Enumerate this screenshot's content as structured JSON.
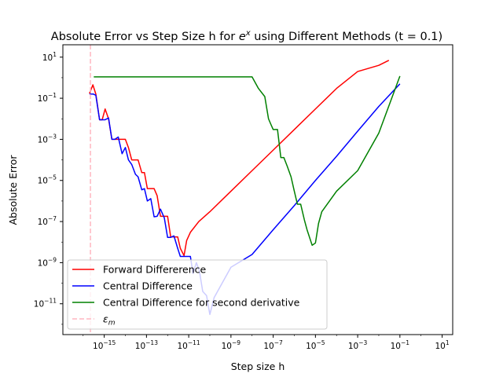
{
  "chart_data": {
    "type": "line",
    "title_prefix": "Absolute Error vs Step Size h for ",
    "title_math": "e",
    "title_sup": "x",
    "title_suffix": " using Different Methods (t = 0.1)",
    "xlabel": "Step size h",
    "ylabel": "Absolute Error",
    "xscale": "log",
    "yscale": "log",
    "xlim": [
      1.1e-17,
      31.6
    ],
    "ylim": [
      3.16e-13,
      40.0
    ],
    "xticks": [
      1e-15,
      1e-13,
      1e-11,
      1e-09,
      1e-07,
      1e-05,
      0.001,
      0.1,
      10.0
    ],
    "yticks": [
      1e-11,
      1e-09,
      1e-07,
      1e-05,
      0.001,
      0.1,
      10.0
    ],
    "xtick_labels": [
      {
        "base": "10",
        "exp": "−15"
      },
      {
        "base": "10",
        "exp": "−13"
      },
      {
        "base": "10",
        "exp": "−11"
      },
      {
        "base": "10",
        "exp": "−9"
      },
      {
        "base": "10",
        "exp": "−7"
      },
      {
        "base": "10",
        "exp": "−5"
      },
      {
        "base": "10",
        "exp": "−3"
      },
      {
        "base": "10",
        "exp": "−1"
      },
      {
        "base": "10",
        "exp": "1"
      }
    ],
    "ytick_labels": [
      {
        "base": "10",
        "exp": "−11"
      },
      {
        "base": "10",
        "exp": "−9"
      },
      {
        "base": "10",
        "exp": "−7"
      },
      {
        "base": "10",
        "exp": "−5"
      },
      {
        "base": "10",
        "exp": "−3"
      },
      {
        "base": "10",
        "exp": "−1"
      },
      {
        "base": "10",
        "exp": "1"
      }
    ],
    "legend_position": "lower-left",
    "series": [
      {
        "name": "Forward Differerence",
        "color": "#ff0000",
        "style": "solid",
        "points": [
          [
            2e-16,
            0.17
          ],
          [
            2.9e-16,
            0.45
          ],
          [
            4e-16,
            0.16
          ],
          [
            6e-16,
            0.009
          ],
          [
            8e-16,
            0.009
          ],
          [
            1.1e-15,
            0.03
          ],
          [
            1.6e-15,
            0.01
          ],
          [
            2.3e-15,
            0.001
          ],
          [
            3.2e-15,
            0.001
          ],
          [
            4.6e-15,
            0.001
          ],
          [
            7e-15,
            0.001
          ],
          [
            1e-14,
            0.001
          ],
          [
            1.4e-14,
            0.0004
          ],
          [
            2e-14,
            0.0001
          ],
          [
            3e-14,
            0.0001
          ],
          [
            4e-14,
            0.0001
          ],
          [
            6e-14,
            2.4e-05
          ],
          [
            8e-14,
            2.4e-05
          ],
          [
            1.1e-13,
            4e-06
          ],
          [
            1.6e-13,
            4e-06
          ],
          [
            2.3e-13,
            4e-06
          ],
          [
            3.2e-13,
            1.8e-06
          ],
          [
            4.6e-13,
            1.8e-07
          ],
          [
            7e-13,
            1.8e-07
          ],
          [
            1e-12,
            1.8e-07
          ],
          [
            1.4e-12,
            1.8e-08
          ],
          [
            2e-12,
            1.8e-08
          ],
          [
            3e-12,
            1.8e-08
          ],
          [
            4e-12,
            5e-09
          ],
          [
            6e-12,
            2.2e-09
          ],
          [
            8e-12,
            1.2e-08
          ],
          [
            1.2e-11,
            3e-08
          ],
          [
            3e-11,
            1e-07
          ],
          [
            1e-10,
            3e-07
          ],
          [
            1e-09,
            3e-06
          ],
          [
            1e-08,
            3e-05
          ],
          [
            1e-07,
            0.0003
          ],
          [
            1e-06,
            0.003
          ],
          [
            1e-05,
            0.03
          ],
          [
            0.0001,
            0.3
          ],
          [
            0.001,
            2.0
          ],
          [
            0.01,
            4.0
          ],
          [
            0.03,
            7.0
          ]
        ]
      },
      {
        "name": "Central Difference",
        "color": "#0000ff",
        "style": "solid",
        "points": [
          [
            2e-16,
            0.16
          ],
          [
            3e-16,
            0.16
          ],
          [
            4e-16,
            0.14
          ],
          [
            6e-16,
            0.009
          ],
          [
            8e-16,
            0.009
          ],
          [
            1.1e-15,
            0.009
          ],
          [
            1.6e-15,
            0.011
          ],
          [
            2.3e-15,
            0.001
          ],
          [
            3.2e-15,
            0.001
          ],
          [
            4.6e-15,
            0.0013
          ],
          [
            7e-15,
            0.0002
          ],
          [
            1e-14,
            0.0004
          ],
          [
            1.4e-14,
            0.0001
          ],
          [
            2e-14,
            6e-05
          ],
          [
            3e-14,
            2e-05
          ],
          [
            4e-14,
            1.5e-05
          ],
          [
            6e-14,
            3.5e-06
          ],
          [
            8e-14,
            4e-06
          ],
          [
            1.1e-13,
            1e-06
          ],
          [
            1.6e-13,
            1.3e-06
          ],
          [
            2.3e-13,
            1.7e-07
          ],
          [
            3.2e-13,
            1.8e-07
          ],
          [
            4.6e-13,
            4e-07
          ],
          [
            7e-13,
            1.5e-07
          ],
          [
            1e-12,
            1.7e-08
          ],
          [
            1.4e-12,
            1.7e-08
          ],
          [
            2e-12,
            2e-08
          ],
          [
            3e-12,
            5e-09
          ],
          [
            4e-12,
            2e-09
          ],
          [
            6e-12,
            2e-09
          ],
          [
            8e-12,
            2e-09
          ],
          [
            1.2e-11,
            2e-09
          ],
          [
            1.6e-11,
            3e-10
          ],
          [
            2.3e-11,
            1e-09
          ],
          [
            3.2e-11,
            4e-10
          ],
          [
            4.6e-11,
            4e-11
          ],
          [
            7e-11,
            2.5e-11
          ],
          [
            1e-10,
            3e-12
          ],
          [
            1.6e-10,
            2e-11
          ],
          [
            1e-09,
            6e-10
          ],
          [
            1e-08,
            2.5e-09
          ],
          [
            1e-07,
            4e-08
          ],
          [
            1e-06,
            6e-07
          ],
          [
            1e-05,
            1e-05
          ],
          [
            0.0001,
            0.00015
          ],
          [
            0.001,
            0.0025
          ],
          [
            0.01,
            0.04
          ],
          [
            0.1,
            0.5
          ]
        ]
      },
      {
        "name": "Central Difference for second derivative",
        "color": "#008000",
        "style": "solid",
        "points": [
          [
            3.2e-16,
            1.1
          ],
          [
            1e-15,
            1.1
          ],
          [
            1e-13,
            1.1
          ],
          [
            1e-11,
            1.1
          ],
          [
            1e-09,
            1.1
          ],
          [
            1e-08,
            1.1
          ],
          [
            2e-08,
            0.3
          ],
          [
            4e-08,
            0.12
          ],
          [
            6e-08,
            0.01
          ],
          [
            8e-08,
            0.005
          ],
          [
            1e-07,
            0.003
          ],
          [
            1.6e-07,
            0.003
          ],
          [
            2.3e-07,
            0.00013
          ],
          [
            3.2e-07,
            0.00013
          ],
          [
            4.6e-07,
            5e-05
          ],
          [
            7e-07,
            1.5e-05
          ],
          [
            1e-06,
            3e-06
          ],
          [
            1.4e-06,
            7e-07
          ],
          [
            2e-06,
            7e-07
          ],
          [
            3e-06,
            1.2e-07
          ],
          [
            4e-06,
            4e-08
          ],
          [
            7e-06,
            7e-09
          ],
          [
            1e-05,
            9e-09
          ],
          [
            1.4e-05,
            8e-08
          ],
          [
            2e-05,
            3e-07
          ],
          [
            0.0001,
            3e-06
          ],
          [
            0.001,
            3e-05
          ],
          [
            0.01,
            0.002
          ],
          [
            0.1,
            1.2
          ]
        ]
      },
      {
        "name": "ε_m",
        "label_base": "ε",
        "label_sub": "m",
        "color": "#ffb6c1",
        "style": "dashed",
        "type": "vline",
        "x": 2.22e-16
      }
    ]
  }
}
